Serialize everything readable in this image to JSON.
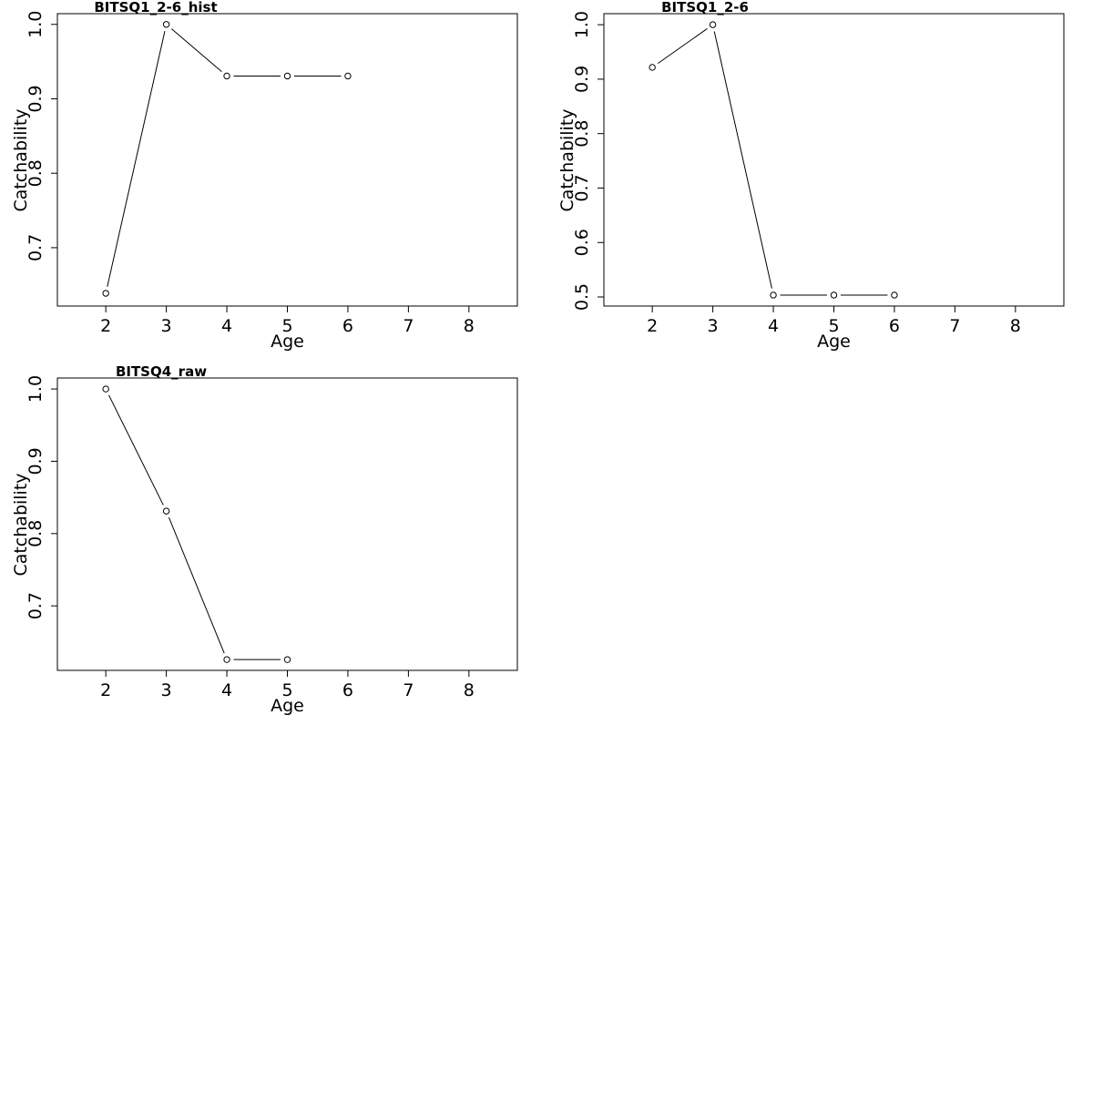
{
  "chart_data": [
    {
      "type": "line",
      "title": "BITSQ1_2-6_hist",
      "xlabel": "Age",
      "ylabel": "Catchability",
      "xlim": [
        1.2,
        8.8
      ],
      "ylim": [
        0.6216,
        1.0144
      ],
      "xticks": [
        2,
        3,
        4,
        5,
        6,
        7,
        8
      ],
      "yticks": [
        "0.7",
        "0.8",
        "0.9",
        "1.0"
      ],
      "x": [
        2,
        3,
        4,
        5,
        6
      ],
      "y": [
        0.6387,
        1.0,
        0.9306,
        0.9306,
        0.9306
      ],
      "grid": false,
      "markers": "open-circle"
    },
    {
      "type": "line",
      "title": "BITSQ1_2-6",
      "xlabel": "Age",
      "ylabel": "Catchability",
      "xlim": [
        1.2,
        8.8
      ],
      "ylim": [
        0.4833,
        1.0203
      ],
      "xticks": [
        2,
        3,
        4,
        5,
        6,
        7,
        8
      ],
      "yticks": [
        "0.5",
        "0.6",
        "0.7",
        "0.8",
        "0.9",
        "1.0"
      ],
      "x": [
        2,
        3,
        4,
        5,
        6
      ],
      "y": [
        0.9217,
        1.0,
        0.5034,
        0.5034,
        0.5034
      ],
      "grid": false,
      "markers": "open-circle"
    },
    {
      "type": "line",
      "title": "BITSQ4_raw",
      "xlabel": "Age",
      "ylabel": "Catchability",
      "xlim": [
        1.2,
        8.8
      ],
      "ylim": [
        0.6108,
        1.0152
      ],
      "xticks": [
        2,
        3,
        4,
        5,
        6,
        7,
        8
      ],
      "yticks": [
        "0.7",
        "0.8",
        "0.9",
        "1.0"
      ],
      "x": [
        2,
        3,
        4,
        5
      ],
      "y": [
        1.0,
        0.8311,
        0.6257,
        0.6257
      ],
      "grid": false,
      "markers": "open-circle"
    }
  ]
}
